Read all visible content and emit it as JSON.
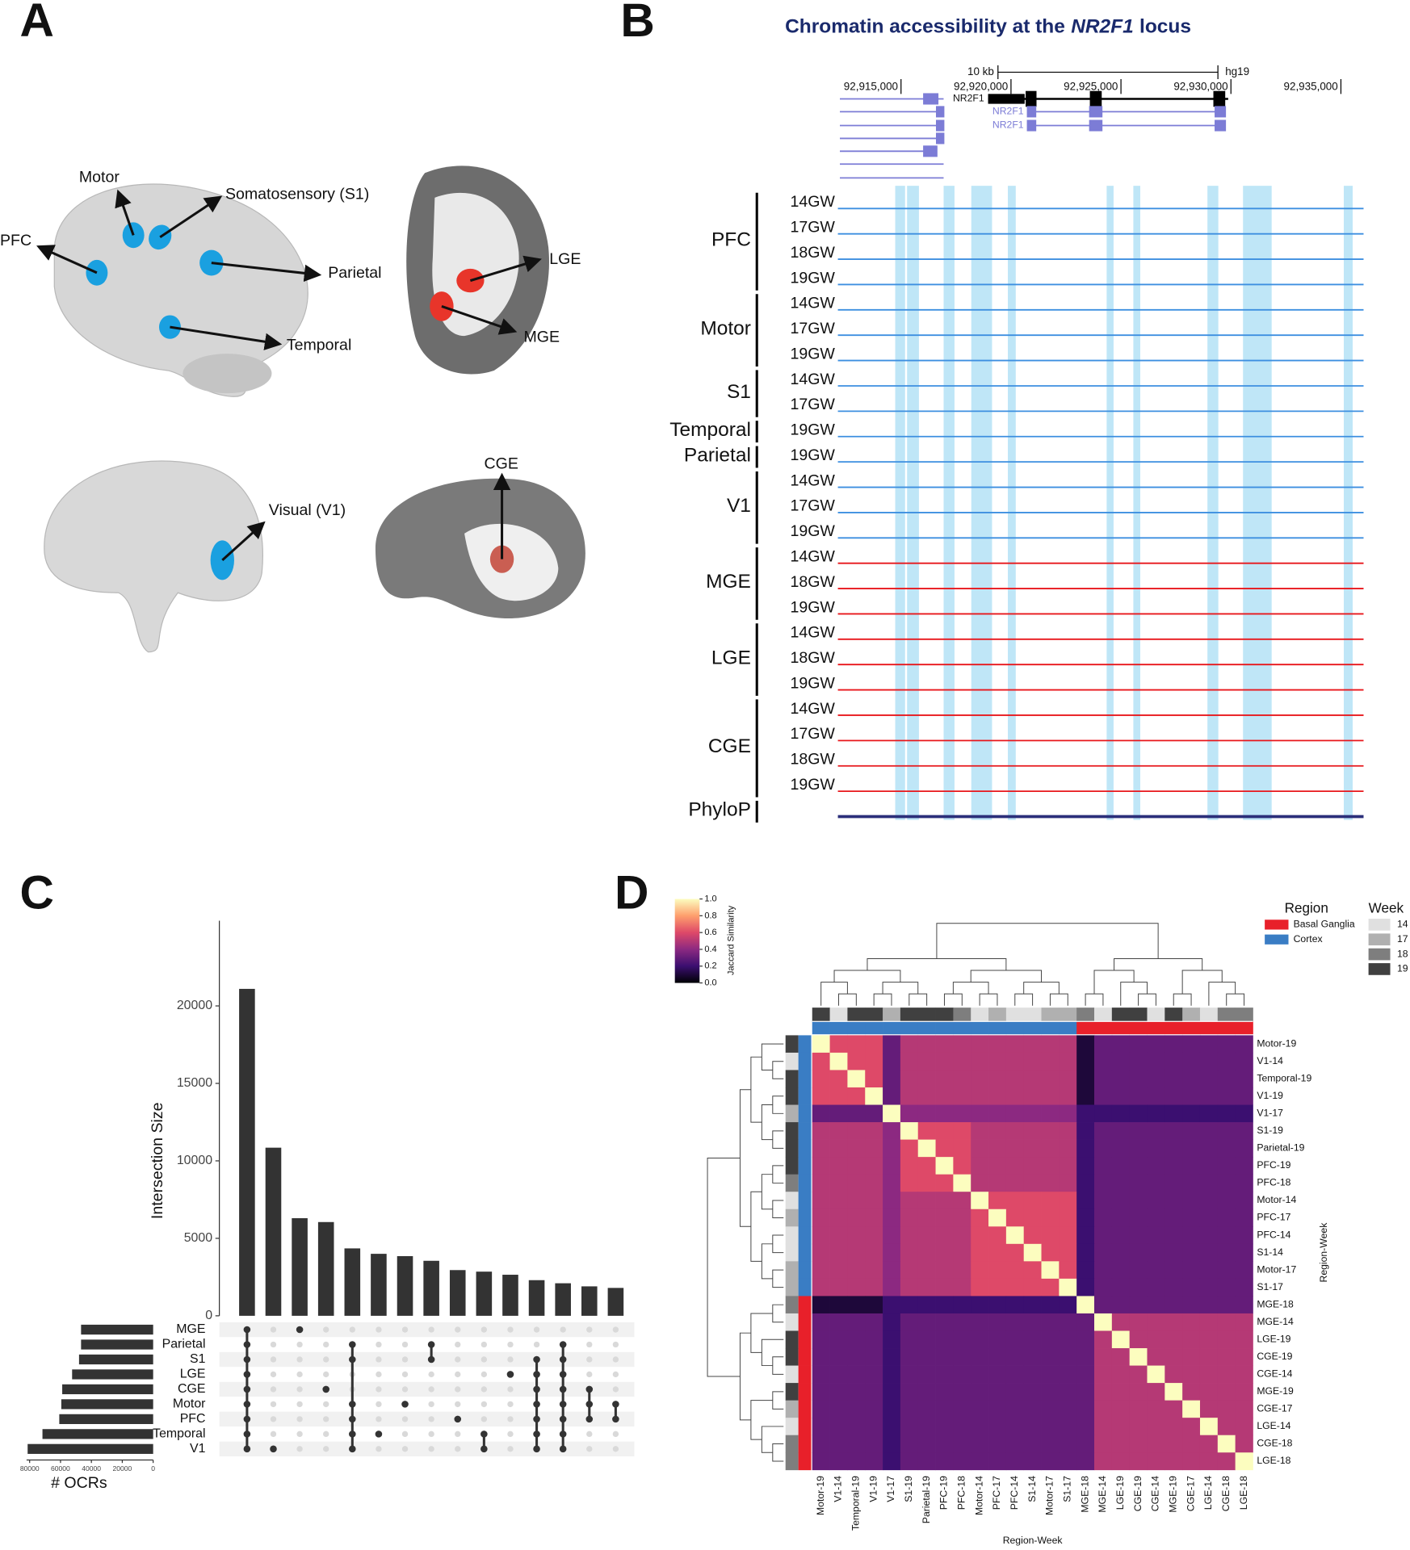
{
  "panel_labels": [
    "A",
    "B",
    "C",
    "D"
  ],
  "panel_a": {
    "labels": [
      "Motor",
      "Somatosensory (S1)",
      "PFC",
      "Parietal",
      "Temporal",
      "LGE",
      "MGE",
      "Visual (V1)",
      "CGE"
    ]
  },
  "panel_b": {
    "title": [
      "Chromatin accessibility at the",
      "NR2F1",
      "locus"
    ],
    "scale_bar": {
      "value": 10000,
      "label": "10 kb"
    },
    "genome": "hg19",
    "xlim": [
      92912130,
      92936030
    ],
    "xticks": [
      {
        "value": 92915000,
        "label": "92,915,000"
      },
      {
        "value": 92920000,
        "label": "92,920,000"
      },
      {
        "value": 92925000,
        "label": "92,925,000"
      },
      {
        "value": 92930000,
        "label": "92,930,000"
      },
      {
        "value": 92935000,
        "label": "92,935,000"
      }
    ],
    "gene_labels": [
      "NR2F1",
      "NR2F1",
      "NR2F1"
    ],
    "track_groups": [
      {
        "name": "PFC",
        "color": "#3d8fe0",
        "tracks": [
          "14GW",
          "17GW",
          "18GW",
          "19GW"
        ]
      },
      {
        "name": "Motor",
        "color": "#3d8fe0",
        "tracks": [
          "14GW",
          "17GW",
          "19GW"
        ]
      },
      {
        "name": "S1",
        "color": "#3d8fe0",
        "tracks": [
          "14GW",
          "17GW"
        ]
      },
      {
        "name": "Temporal",
        "color": "#3d8fe0",
        "tracks": [
          "19GW"
        ]
      },
      {
        "name": "Parietal",
        "color": "#3d8fe0",
        "tracks": [
          "19GW"
        ]
      },
      {
        "name": "V1",
        "color": "#3d8fe0",
        "tracks": [
          "14GW",
          "17GW",
          "19GW"
        ]
      },
      {
        "name": "MGE",
        "color": "#e8161b",
        "tracks": [
          "14GW",
          "18GW",
          "19GW"
        ]
      },
      {
        "name": "LGE",
        "color": "#e8161b",
        "tracks": [
          "14GW",
          "18GW",
          "19GW"
        ]
      },
      {
        "name": "CGE",
        "color": "#e8161b",
        "tracks": [
          "14GW",
          "17GW",
          "18GW",
          "19GW"
        ]
      },
      {
        "name": "PhyloP",
        "color": "#2b2f7a",
        "tracks": []
      }
    ]
  },
  "chart_data": [
    {
      "type": "upset",
      "ylabel": "Intersection Size",
      "values": [
        21100,
        10850,
        6300,
        6050,
        4350,
        4000,
        3850,
        3550,
        2950,
        2850,
        2650,
        2300,
        2100,
        1900,
        1800
      ],
      "color": "#333333",
      "ylim": [
        0,
        25500
      ],
      "yticks": [
        0,
        5000,
        10000,
        15000,
        20000
      ],
      "sets": [
        "MGE",
        "Parietal",
        "S1",
        "LGE",
        "CGE",
        "Motor",
        "PFC",
        "Temporal",
        "V1"
      ],
      "set_sizes": [
        46700,
        46700,
        48000,
        52500,
        58900,
        59500,
        60800,
        71700,
        81300
      ],
      "set_xlabel": "# OCRs",
      "xlim": [
        0,
        82000
      ],
      "xticks": [
        80000,
        60000,
        40000,
        20000,
        0
      ],
      "intersections": [
        [
          0,
          1,
          2,
          3,
          4,
          5,
          6,
          7,
          8
        ],
        [
          8
        ],
        [
          0
        ],
        [
          4
        ],
        [
          1,
          2,
          5,
          6,
          7,
          8
        ],
        [
          7
        ],
        [
          5
        ],
        [
          1,
          2
        ],
        [
          6
        ],
        [
          7,
          8
        ],
        [
          3
        ],
        [
          2,
          3,
          4,
          5,
          6,
          7,
          8
        ],
        [
          1,
          2,
          3,
          4,
          5,
          6,
          7,
          8
        ],
        [
          4,
          5,
          6
        ],
        [
          5,
          6
        ]
      ]
    },
    {
      "type": "heatmap",
      "xlabel": "Region-Week",
      "ylabel": "Region-Week",
      "colorbar_label": "Jaccard Similarity",
      "clim": [
        0,
        1
      ],
      "cticks": [
        {
          "value": 0,
          "label": "0.0"
        },
        {
          "value": 0.2,
          "label": "0.2"
        },
        {
          "value": 0.4,
          "label": "0.4"
        },
        {
          "value": 0.6,
          "label": "0.6"
        },
        {
          "value": 0.8,
          "label": "0.8"
        },
        {
          "value": 1,
          "label": "1.0"
        }
      ],
      "labels": [
        "Motor-19",
        "V1-14",
        "Temporal-19",
        "V1-19",
        "V1-17",
        "S1-19",
        "Parietal-19",
        "PFC-19",
        "PFC-18",
        "Motor-14",
        "PFC-17",
        "PFC-14",
        "S1-14",
        "Motor-17",
        "S1-17",
        "MGE-18",
        "MGE-14",
        "LGE-19",
        "CGE-19",
        "CGE-14",
        "MGE-19",
        "CGE-17",
        "LGE-14",
        "CGE-18",
        "LGE-18"
      ],
      "week": [
        19,
        14,
        19,
        19,
        17,
        19,
        19,
        19,
        18,
        14,
        17,
        14,
        14,
        17,
        17,
        18,
        14,
        19,
        19,
        14,
        19,
        17,
        14,
        18,
        18
      ],
      "region": [
        1,
        1,
        1,
        1,
        1,
        1,
        1,
        1,
        1,
        1,
        1,
        1,
        1,
        1,
        1,
        0,
        0,
        0,
        0,
        0,
        0,
        0,
        0,
        0,
        0
      ],
      "legend": {
        "region_title": "Region",
        "regions": [
          {
            "name": "Basal Ganglia",
            "color": "#e8202a"
          },
          {
            "name": "Cortex",
            "color": "#3a7dc4"
          }
        ],
        "week_title": "Week",
        "weeks": [
          {
            "value": 14,
            "color": "#e0e0e0"
          },
          {
            "value": 17,
            "color": "#b0b0b0"
          },
          {
            "value": 18,
            "color": "#7e7e7e"
          },
          {
            "value": 19,
            "color": "#404040"
          }
        ]
      },
      "values": [
        [
          1,
          0.6,
          0.6,
          0.6,
          0.3,
          0.5,
          0.5,
          0.5,
          0.5,
          0.5,
          0.5,
          0.5,
          0.5,
          0.5,
          0.5,
          0.1,
          0.3,
          0.3,
          0.3,
          0.3,
          0.3,
          0.3,
          0.3,
          0.3,
          0.3
        ],
        [
          0.6,
          1,
          0.6,
          0.6,
          0.3,
          0.5,
          0.5,
          0.5,
          0.5,
          0.5,
          0.5,
          0.5,
          0.5,
          0.5,
          0.5,
          0.1,
          0.3,
          0.3,
          0.3,
          0.3,
          0.3,
          0.3,
          0.3,
          0.3,
          0.3
        ],
        [
          0.6,
          0.6,
          1,
          0.6,
          0.3,
          0.5,
          0.5,
          0.5,
          0.5,
          0.5,
          0.5,
          0.5,
          0.5,
          0.5,
          0.5,
          0.1,
          0.3,
          0.3,
          0.3,
          0.3,
          0.3,
          0.3,
          0.3,
          0.3,
          0.3
        ],
        [
          0.6,
          0.6,
          0.6,
          1,
          0.3,
          0.5,
          0.5,
          0.5,
          0.5,
          0.5,
          0.5,
          0.5,
          0.5,
          0.5,
          0.5,
          0.1,
          0.3,
          0.3,
          0.3,
          0.3,
          0.3,
          0.3,
          0.3,
          0.3,
          0.3
        ],
        [
          0.3,
          0.3,
          0.3,
          0.3,
          1,
          0.4,
          0.4,
          0.4,
          0.4,
          0.4,
          0.4,
          0.4,
          0.4,
          0.4,
          0.4,
          0.2,
          0.2,
          0.2,
          0.2,
          0.2,
          0.2,
          0.2,
          0.2,
          0.2,
          0.2
        ],
        [
          0.5,
          0.5,
          0.5,
          0.5,
          0.4,
          1,
          0.6,
          0.6,
          0.6,
          0.5,
          0.5,
          0.5,
          0.5,
          0.5,
          0.5,
          0.2,
          0.3,
          0.3,
          0.3,
          0.3,
          0.3,
          0.3,
          0.3,
          0.3,
          0.3
        ],
        [
          0.5,
          0.5,
          0.5,
          0.5,
          0.4,
          0.6,
          1,
          0.6,
          0.6,
          0.5,
          0.5,
          0.5,
          0.5,
          0.5,
          0.5,
          0.2,
          0.3,
          0.3,
          0.3,
          0.3,
          0.3,
          0.3,
          0.3,
          0.3,
          0.3
        ],
        [
          0.5,
          0.5,
          0.5,
          0.5,
          0.4,
          0.6,
          0.6,
          1,
          0.6,
          0.5,
          0.5,
          0.5,
          0.5,
          0.5,
          0.5,
          0.2,
          0.3,
          0.3,
          0.3,
          0.3,
          0.3,
          0.3,
          0.3,
          0.3,
          0.3
        ],
        [
          0.5,
          0.5,
          0.5,
          0.5,
          0.4,
          0.6,
          0.6,
          0.6,
          1,
          0.5,
          0.5,
          0.5,
          0.5,
          0.5,
          0.5,
          0.2,
          0.3,
          0.3,
          0.3,
          0.3,
          0.3,
          0.3,
          0.3,
          0.3,
          0.3
        ],
        [
          0.5,
          0.5,
          0.5,
          0.5,
          0.4,
          0.5,
          0.5,
          0.5,
          0.5,
          1,
          0.6,
          0.6,
          0.6,
          0.6,
          0.6,
          0.2,
          0.3,
          0.3,
          0.3,
          0.3,
          0.3,
          0.3,
          0.3,
          0.3,
          0.3
        ],
        [
          0.5,
          0.5,
          0.5,
          0.5,
          0.4,
          0.5,
          0.5,
          0.5,
          0.5,
          0.6,
          1,
          0.6,
          0.6,
          0.6,
          0.6,
          0.2,
          0.3,
          0.3,
          0.3,
          0.3,
          0.3,
          0.3,
          0.3,
          0.3,
          0.3
        ],
        [
          0.5,
          0.5,
          0.5,
          0.5,
          0.4,
          0.5,
          0.5,
          0.5,
          0.5,
          0.6,
          0.6,
          1,
          0.6,
          0.6,
          0.6,
          0.2,
          0.3,
          0.3,
          0.3,
          0.3,
          0.3,
          0.3,
          0.3,
          0.3,
          0.3
        ],
        [
          0.5,
          0.5,
          0.5,
          0.5,
          0.4,
          0.5,
          0.5,
          0.5,
          0.5,
          0.6,
          0.6,
          0.6,
          1,
          0.6,
          0.6,
          0.2,
          0.3,
          0.3,
          0.3,
          0.3,
          0.3,
          0.3,
          0.3,
          0.3,
          0.3
        ],
        [
          0.5,
          0.5,
          0.5,
          0.5,
          0.4,
          0.5,
          0.5,
          0.5,
          0.5,
          0.6,
          0.6,
          0.6,
          0.6,
          1,
          0.6,
          0.2,
          0.3,
          0.3,
          0.3,
          0.3,
          0.3,
          0.3,
          0.3,
          0.3,
          0.3
        ],
        [
          0.5,
          0.5,
          0.5,
          0.5,
          0.4,
          0.5,
          0.5,
          0.5,
          0.5,
          0.6,
          0.6,
          0.6,
          0.6,
          0.6,
          1,
          0.2,
          0.3,
          0.3,
          0.3,
          0.3,
          0.3,
          0.3,
          0.3,
          0.3,
          0.3
        ],
        [
          0.1,
          0.1,
          0.1,
          0.1,
          0.2,
          0.2,
          0.2,
          0.2,
          0.2,
          0.2,
          0.2,
          0.2,
          0.2,
          0.2,
          0.2,
          1,
          0.3,
          0.3,
          0.3,
          0.3,
          0.3,
          0.3,
          0.3,
          0.3,
          0.3
        ],
        [
          0.3,
          0.3,
          0.3,
          0.3,
          0.2,
          0.3,
          0.3,
          0.3,
          0.3,
          0.3,
          0.3,
          0.3,
          0.3,
          0.3,
          0.3,
          0.3,
          1,
          0.5,
          0.5,
          0.5,
          0.5,
          0.5,
          0.5,
          0.5,
          0.5
        ],
        [
          0.3,
          0.3,
          0.3,
          0.3,
          0.2,
          0.3,
          0.3,
          0.3,
          0.3,
          0.3,
          0.3,
          0.3,
          0.3,
          0.3,
          0.3,
          0.3,
          0.5,
          1,
          0.5,
          0.5,
          0.5,
          0.5,
          0.5,
          0.5,
          0.5
        ],
        [
          0.3,
          0.3,
          0.3,
          0.3,
          0.2,
          0.3,
          0.3,
          0.3,
          0.3,
          0.3,
          0.3,
          0.3,
          0.3,
          0.3,
          0.3,
          0.3,
          0.5,
          0.5,
          1,
          0.5,
          0.5,
          0.5,
          0.5,
          0.5,
          0.5
        ],
        [
          0.3,
          0.3,
          0.3,
          0.3,
          0.2,
          0.3,
          0.3,
          0.3,
          0.3,
          0.3,
          0.3,
          0.3,
          0.3,
          0.3,
          0.3,
          0.3,
          0.5,
          0.5,
          0.5,
          1,
          0.5,
          0.5,
          0.5,
          0.5,
          0.5
        ],
        [
          0.3,
          0.3,
          0.3,
          0.3,
          0.2,
          0.3,
          0.3,
          0.3,
          0.3,
          0.3,
          0.3,
          0.3,
          0.3,
          0.3,
          0.3,
          0.3,
          0.5,
          0.5,
          0.5,
          0.5,
          1,
          0.5,
          0.5,
          0.5,
          0.5
        ],
        [
          0.3,
          0.3,
          0.3,
          0.3,
          0.2,
          0.3,
          0.3,
          0.3,
          0.3,
          0.3,
          0.3,
          0.3,
          0.3,
          0.3,
          0.3,
          0.3,
          0.5,
          0.5,
          0.5,
          0.5,
          0.5,
          1,
          0.5,
          0.5,
          0.5
        ],
        [
          0.3,
          0.3,
          0.3,
          0.3,
          0.2,
          0.3,
          0.3,
          0.3,
          0.3,
          0.3,
          0.3,
          0.3,
          0.3,
          0.3,
          0.3,
          0.3,
          0.5,
          0.5,
          0.5,
          0.5,
          0.5,
          0.5,
          1,
          0.5,
          0.5
        ],
        [
          0.3,
          0.3,
          0.3,
          0.3,
          0.2,
          0.3,
          0.3,
          0.3,
          0.3,
          0.3,
          0.3,
          0.3,
          0.3,
          0.3,
          0.3,
          0.3,
          0.5,
          0.5,
          0.5,
          0.5,
          0.5,
          0.5,
          0.5,
          1,
          0.5
        ],
        [
          0.3,
          0.3,
          0.3,
          0.3,
          0.2,
          0.3,
          0.3,
          0.3,
          0.3,
          0.3,
          0.3,
          0.3,
          0.3,
          0.3,
          0.3,
          0.3,
          0.5,
          0.5,
          0.5,
          0.5,
          0.5,
          0.5,
          0.5,
          0.5,
          1
        ]
      ]
    }
  ]
}
